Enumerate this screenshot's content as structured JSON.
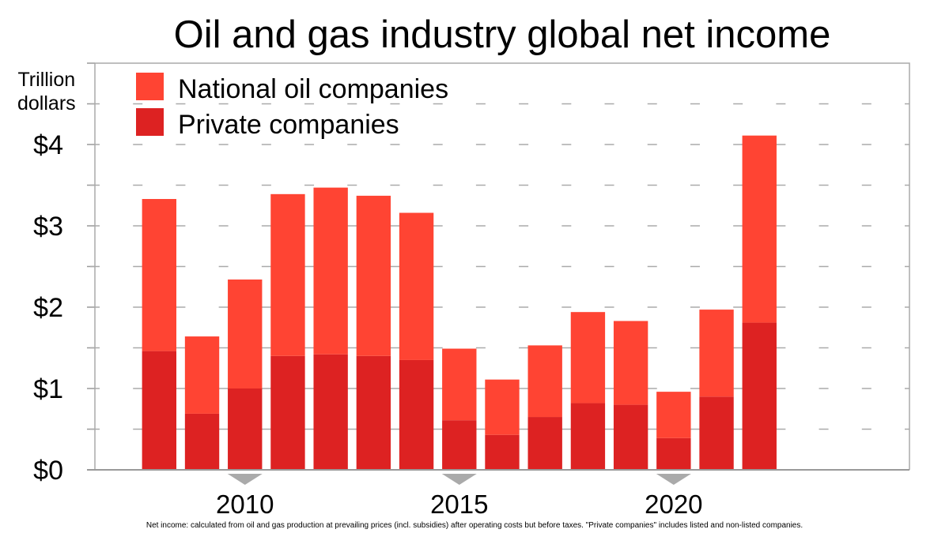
{
  "chart_data": {
    "type": "bar",
    "stacked": true,
    "title": "Oil and gas industry global net income",
    "ylabel": "Trillion dollars",
    "x": [
      2008,
      2009,
      2010,
      2011,
      2012,
      2013,
      2014,
      2015,
      2016,
      2017,
      2018,
      2019,
      2020,
      2021,
      2022
    ],
    "series": [
      {
        "name": "Private companies",
        "color": "#dd2222",
        "values": [
          1.46,
          0.69,
          1.0,
          1.4,
          1.42,
          1.4,
          1.35,
          0.61,
          0.43,
          0.65,
          0.82,
          0.8,
          0.39,
          0.9,
          1.81
        ]
      },
      {
        "name": "National oil companies",
        "color": "#ff4433",
        "values": [
          1.87,
          0.95,
          1.34,
          1.99,
          2.05,
          1.97,
          1.81,
          0.88,
          0.68,
          0.88,
          1.12,
          1.03,
          0.57,
          1.07,
          2.3
        ]
      }
    ],
    "xlim": [
      2006.5,
      2025.5
    ],
    "ylim": [
      0,
      5
    ],
    "xticks": [
      2010,
      2015,
      2020
    ],
    "xtick_labels": [
      "2010",
      "2015",
      "2020"
    ],
    "yticks": [
      0,
      1,
      2,
      3,
      4
    ],
    "ytick_labels": [
      "$0",
      "$1",
      "$2",
      "$3",
      "$4"
    ],
    "grid": true,
    "grid_step": 0.5,
    "legend_position": "top-left",
    "note": "Net income: calculated from oil and gas production at prevailing prices (incl. subsidies) after operating costs but before taxes. \"Private companies\" includes listed and non-listed companies."
  }
}
